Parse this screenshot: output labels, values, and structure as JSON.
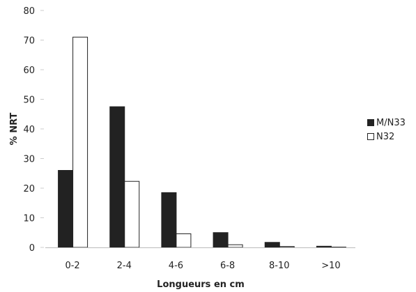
{
  "chart_data": {
    "type": "bar",
    "categories": [
      "0-2",
      "2-4",
      "4-6",
      "6-8",
      "8-10",
      ">10"
    ],
    "series": [
      {
        "name": "M/N33",
        "values": [
          26,
          47.5,
          18.5,
          5,
          1.7,
          0.4
        ],
        "color": "#222222"
      },
      {
        "name": "N32",
        "values": [
          71,
          22.3,
          4.6,
          0.9,
          0.3,
          0.1
        ],
        "color": "#ffffff"
      }
    ],
    "xlabel": "Longueurs en cm",
    "ylabel": "% NRT",
    "ylim": [
      0,
      80
    ],
    "yticks": [
      0,
      10,
      20,
      30,
      40,
      50,
      60,
      70,
      80
    ],
    "grid": false,
    "legend_position": "right"
  }
}
